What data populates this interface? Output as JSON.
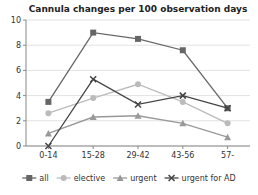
{
  "chart_data": {
    "type": "line",
    "title": "Cannula changes per 100 observation days",
    "categories": [
      "0-14",
      "15-28",
      "29-42",
      "43-56",
      "57-"
    ],
    "series": [
      {
        "name": "all",
        "color": "#666666",
        "marker": "square",
        "values": [
          3.5,
          9.0,
          8.5,
          7.6,
          3.0
        ]
      },
      {
        "name": "elective",
        "color": "#bbbbbb",
        "marker": "circle",
        "values": [
          2.6,
          3.8,
          4.9,
          3.5,
          1.8
        ]
      },
      {
        "name": "urgent",
        "color": "#999999",
        "marker": "triangle",
        "values": [
          1.0,
          2.3,
          2.4,
          1.8,
          0.7
        ]
      },
      {
        "name": "urgent for AD",
        "color": "#444444",
        "marker": "x",
        "values": [
          0.0,
          5.3,
          3.3,
          4.0,
          3.0
        ]
      }
    ],
    "ylim": [
      0,
      10
    ],
    "yticks": [
      0,
      2,
      4,
      6,
      8,
      10
    ],
    "grid": true,
    "legend": "bottom"
  }
}
